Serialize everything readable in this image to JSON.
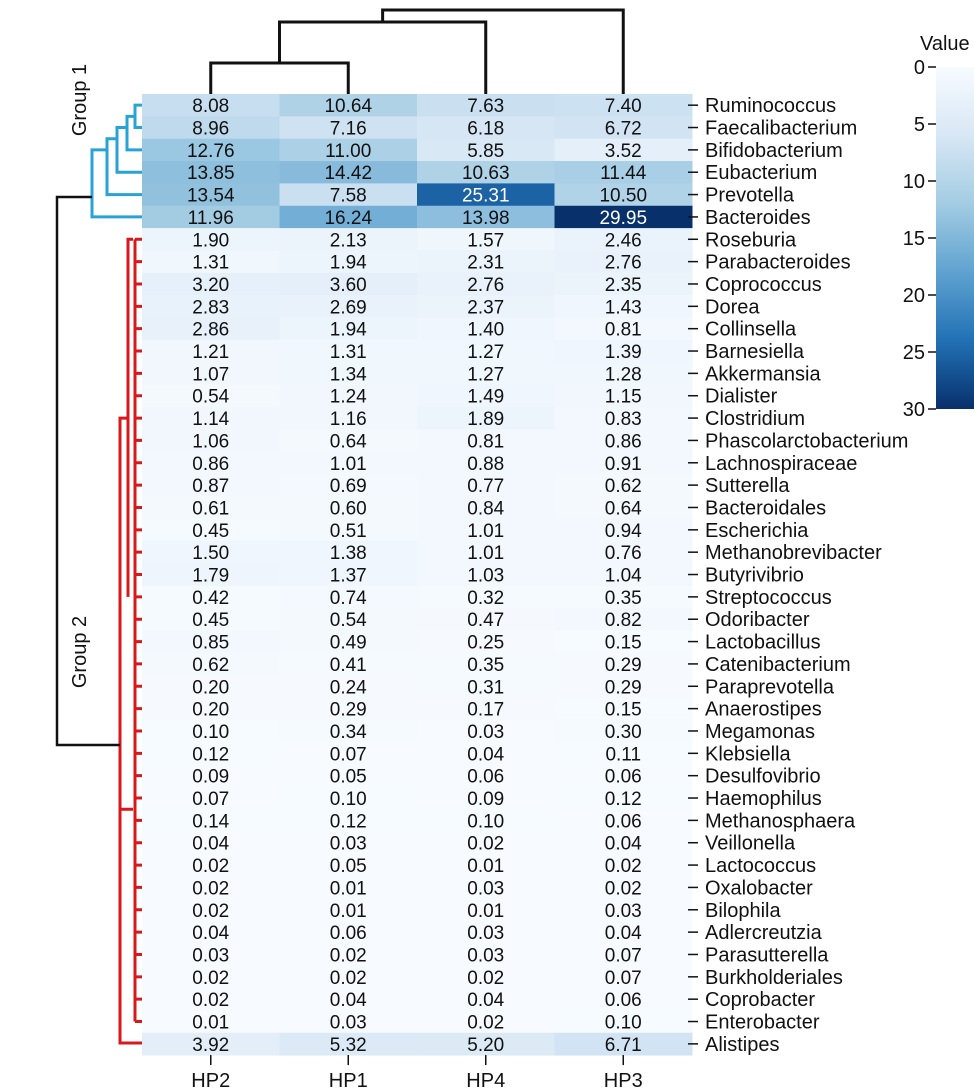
{
  "chart_data": {
    "type": "heatmap",
    "columns": [
      "HP2",
      "HP1",
      "HP4",
      "HP3"
    ],
    "rows": [
      "Ruminococcus",
      "Faecalibacterium",
      "Bifidobacterium",
      "Eubacterium",
      "Prevotella",
      "Bacteroides",
      "Roseburia",
      "Parabacteroides",
      "Coprococcus",
      "Dorea",
      "Collinsella",
      "Barnesiella",
      "Akkermansia",
      "Dialister",
      "Clostridium",
      "Phascolarctobacterium",
      "Lachnospiraceae",
      "Sutterella",
      "Bacteroidales",
      "Escherichia",
      "Methanobrevibacter",
      "Butyrivibrio",
      "Streptococcus",
      "Odoribacter",
      "Lactobacillus",
      "Catenibacterium",
      "Paraprevotella",
      "Anaerostipes",
      "Megamonas",
      "Klebsiella",
      "Desulfovibrio",
      "Haemophilus",
      "Methanosphaera",
      "Veillonella",
      "Lactococcus",
      "Oxalobacter",
      "Bilophila",
      "Adlercreutzia",
      "Parasutterella",
      "Burkholderiales",
      "Coprobacter",
      "Enterobacter",
      "Alistipes"
    ],
    "values": [
      [
        "8.08",
        "10.64",
        "7.63",
        "7.40"
      ],
      [
        "8.96",
        "7.16",
        "6.18",
        "6.72"
      ],
      [
        "12.76",
        "11.00",
        "5.85",
        "3.52"
      ],
      [
        "13.85",
        "14.42",
        "10.63",
        "11.44"
      ],
      [
        "13.54",
        "7.58",
        "25.31",
        "10.50"
      ],
      [
        "11.96",
        "16.24",
        "13.98",
        "29.95"
      ],
      [
        "1.90",
        "2.13",
        "1.57",
        "2.46"
      ],
      [
        "1.31",
        "1.94",
        "2.31",
        "2.76"
      ],
      [
        "3.20",
        "3.60",
        "2.76",
        "2.35"
      ],
      [
        "2.83",
        "2.69",
        "2.37",
        "1.43"
      ],
      [
        "2.86",
        "1.94",
        "1.40",
        "0.81"
      ],
      [
        "1.21",
        "1.31",
        "1.27",
        "1.39"
      ],
      [
        "1.07",
        "1.34",
        "1.27",
        "1.28"
      ],
      [
        "0.54",
        "1.24",
        "1.49",
        "1.15"
      ],
      [
        "1.14",
        "1.16",
        "1.89",
        "0.83"
      ],
      [
        "1.06",
        "0.64",
        "0.81",
        "0.86"
      ],
      [
        "0.86",
        "1.01",
        "0.88",
        "0.91"
      ],
      [
        "0.87",
        "0.69",
        "0.77",
        "0.62"
      ],
      [
        "0.61",
        "0.60",
        "0.84",
        "0.64"
      ],
      [
        "0.45",
        "0.51",
        "1.01",
        "0.94"
      ],
      [
        "1.50",
        "1.38",
        "1.01",
        "0.76"
      ],
      [
        "1.79",
        "1.37",
        "1.03",
        "1.04"
      ],
      [
        "0.42",
        "0.74",
        "0.32",
        "0.35"
      ],
      [
        "0.45",
        "0.54",
        "0.47",
        "0.82"
      ],
      [
        "0.85",
        "0.49",
        "0.25",
        "0.15"
      ],
      [
        "0.62",
        "0.41",
        "0.35",
        "0.29"
      ],
      [
        "0.20",
        "0.24",
        "0.31",
        "0.29"
      ],
      [
        "0.20",
        "0.29",
        "0.17",
        "0.15"
      ],
      [
        "0.10",
        "0.34",
        "0.03",
        "0.30"
      ],
      [
        "0.12",
        "0.07",
        "0.04",
        "0.11"
      ],
      [
        "0.09",
        "0.05",
        "0.06",
        "0.06"
      ],
      [
        "0.07",
        "0.10",
        "0.09",
        "0.12"
      ],
      [
        "0.14",
        "0.12",
        "0.10",
        "0.06"
      ],
      [
        "0.04",
        "0.03",
        "0.02",
        "0.04"
      ],
      [
        "0.02",
        "0.05",
        "0.01",
        "0.02"
      ],
      [
        "0.02",
        "0.01",
        "0.03",
        "0.02"
      ],
      [
        "0.02",
        "0.01",
        "0.01",
        "0.03"
      ],
      [
        "0.04",
        "0.06",
        "0.03",
        "0.04"
      ],
      [
        "0.03",
        "0.02",
        "0.03",
        "0.07"
      ],
      [
        "0.02",
        "0.02",
        "0.02",
        "0.07"
      ],
      [
        "0.02",
        "0.04",
        "0.04",
        "0.06"
      ],
      [
        "0.01",
        "0.03",
        "0.02",
        "0.10"
      ],
      [
        "3.92",
        "5.32",
        "5.20",
        "6.71"
      ]
    ],
    "groups": [
      {
        "name": "Group 1",
        "color": "#29a3d6"
      },
      {
        "name": "Group 2",
        "color": "#d7191c"
      }
    ],
    "colorbar": {
      "title": "Value",
      "range": [
        0,
        30
      ],
      "ticks": [
        "0",
        "5",
        "10",
        "15",
        "20",
        "25",
        "30"
      ],
      "low_color": "#f4f8fc",
      "high_color": "#08306b"
    },
    "dendrogram_color": "#111111"
  }
}
